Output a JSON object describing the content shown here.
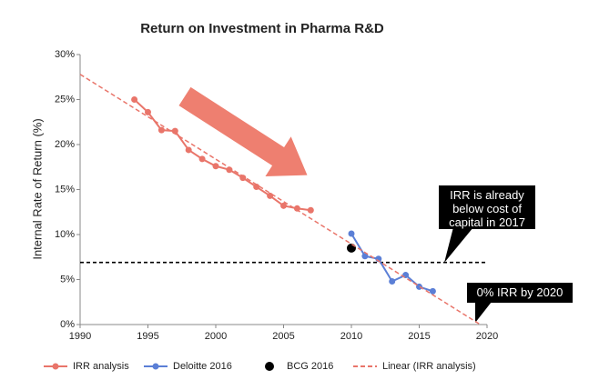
{
  "chart_data": {
    "type": "line",
    "title": "Return on Investment in Pharma R&D",
    "y_label": "Internal Rate of Return (%)",
    "xlim": [
      1990,
      2020
    ],
    "xticks": [
      1990,
      1995,
      2000,
      2005,
      2010,
      2015,
      2020
    ],
    "ylim": [
      0,
      30
    ],
    "yticks": [
      {
        "value": 0,
        "label": "0%"
      },
      {
        "value": 5,
        "label": "5%"
      },
      {
        "value": 10,
        "label": "10%"
      },
      {
        "value": 15,
        "label": "15%"
      },
      {
        "value": 20,
        "label": "20%"
      },
      {
        "value": 25,
        "label": "25%"
      },
      {
        "value": 30,
        "label": "30%"
      }
    ],
    "grid": false,
    "legend": "bottom",
    "series": [
      {
        "name": "IRR analysis",
        "color": "#e9756a",
        "style": "line-markers",
        "x": [
          1994,
          1995,
          1996,
          1997,
          1998,
          1999,
          2000,
          2001,
          2002,
          2003,
          2004,
          2005,
          2006,
          2007
        ],
        "values": [
          25.0,
          23.6,
          21.6,
          21.5,
          19.4,
          18.4,
          17.6,
          17.2,
          16.3,
          15.3,
          14.3,
          13.2,
          12.9,
          12.7
        ]
      },
      {
        "name": "Deloitte 2016",
        "color": "#5b7fd6",
        "style": "line-markers",
        "x": [
          2010,
          2011,
          2012,
          2013,
          2014,
          2015,
          2016
        ],
        "values": [
          10.1,
          7.6,
          7.3,
          4.8,
          5.5,
          4.2,
          3.7
        ]
      },
      {
        "name": "BCG 2016",
        "color": "#000000",
        "style": "scatter",
        "x": [
          2010
        ],
        "values": [
          8.5
        ]
      },
      {
        "name": "Linear (IRR analysis)",
        "color": "#e9756a",
        "style": "dashed-line",
        "x": [
          1990,
          2019.5
        ],
        "values": [
          27.8,
          0
        ]
      }
    ],
    "reference_line": {
      "y": 6.9,
      "color": "#000000",
      "style": "dashed"
    },
    "annotations": [
      "IRR is already below cost of capital in 2017",
      "0% IRR by 2020"
    ]
  }
}
